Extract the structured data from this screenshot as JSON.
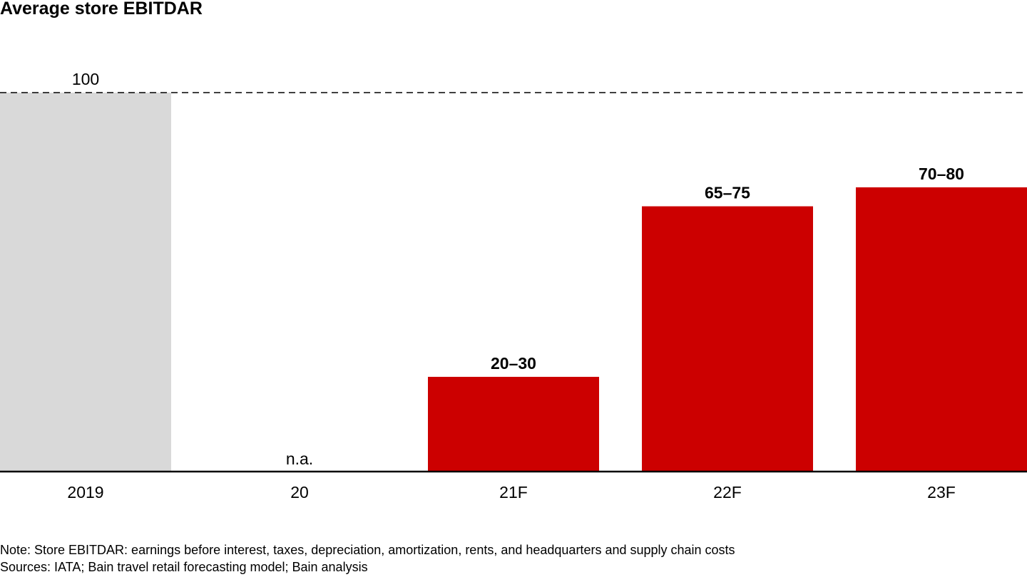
{
  "chart_data": {
    "type": "bar",
    "title": "Average store EBITDAR",
    "categories": [
      "2019",
      "20",
      "21F",
      "22F",
      "23F"
    ],
    "bars": [
      {
        "category": "2019",
        "low": 100,
        "high": 100,
        "label": "100",
        "kind": "baseline"
      },
      {
        "category": "20",
        "low": null,
        "high": null,
        "label": "n.a.",
        "kind": "na"
      },
      {
        "category": "21F",
        "low": 20,
        "high": 30,
        "label": "20–30",
        "kind": "forecast"
      },
      {
        "category": "22F",
        "low": 65,
        "high": 75,
        "label": "65–75",
        "kind": "forecast"
      },
      {
        "category": "23F",
        "low": 70,
        "high": 80,
        "label": "70–80",
        "kind": "forecast"
      }
    ],
    "reference_line": {
      "value": 100,
      "style": "dashed"
    },
    "ylim": [
      0,
      100
    ],
    "xlabel": "",
    "ylabel": "",
    "grid": false,
    "legend": "none",
    "colors": {
      "baseline": "#d9d9d9",
      "forecast": "#cc0000",
      "axis": "#000000",
      "text": "#000000"
    }
  },
  "footnotes": {
    "note": "Note: Store EBITDAR: earnings before interest, taxes, depreciation, amortization, rents, and headquarters and supply chain costs",
    "sources": "Sources: IATA; Bain travel retail forecasting model; Bain analysis"
  }
}
